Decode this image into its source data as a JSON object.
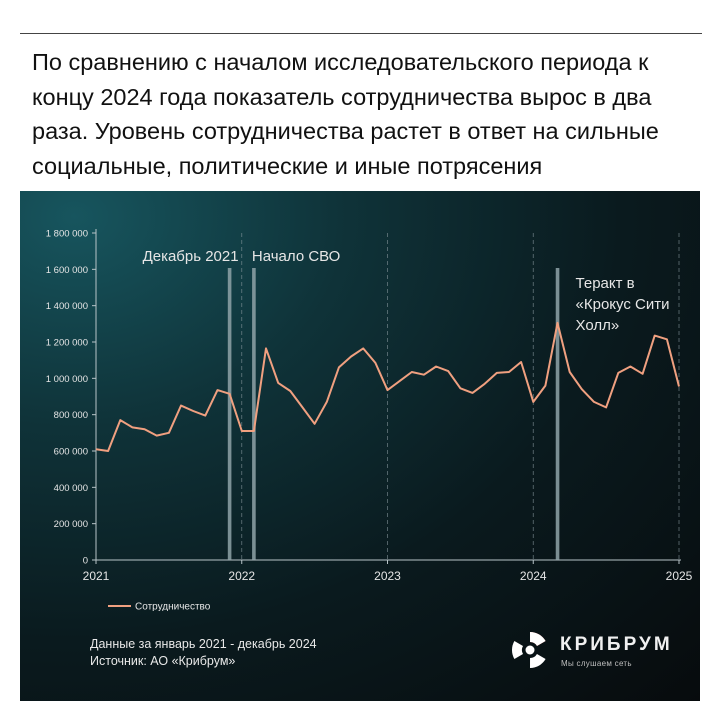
{
  "headline": "По сравнению с началом исследовательского периода к концу 2024 года показатель сотрудничества вырос в два раза. Уровень сотрудничества растет в ответ на сильные социальные, политические и иные потрясения",
  "footer": {
    "line1": "Данные за январь 2021  - декабрь 2024",
    "line2": "Источник: АО «Крибрум»"
  },
  "logo": {
    "name": "КРИБРУМ",
    "tagline": "Мы слушаем сеть"
  },
  "colors": {
    "line": "#f0a080",
    "event_bar": "#8fa3a8",
    "axis_text": "#e6e6e6",
    "panel_bg": "#0a1a1e",
    "logo_red": "#d6332a"
  },
  "chart_data": {
    "type": "line",
    "x_start": "2021-01",
    "x_end": "2025-01",
    "x_ticks": [
      "2021",
      "2022",
      "2023",
      "2024",
      "2025"
    ],
    "ylim": [
      0,
      1800000
    ],
    "y_ticks": [
      "0",
      "200 000",
      "400 000",
      "600 000",
      "800 000",
      "1 000 000",
      "1 200 000",
      "1 400 000",
      "1 600 000",
      "1 800 000"
    ],
    "grid": "vertical dashed at year boundaries",
    "legend_position": "bottom-left",
    "series": [
      {
        "name": "Сотрудничество",
        "x": [
          "2021-01",
          "2021-02",
          "2021-03",
          "2021-04",
          "2021-05",
          "2021-06",
          "2021-07",
          "2021-08",
          "2021-09",
          "2021-10",
          "2021-11",
          "2021-12",
          "2022-01",
          "2022-02",
          "2022-03",
          "2022-04",
          "2022-05",
          "2022-06",
          "2022-07",
          "2022-08",
          "2022-09",
          "2022-10",
          "2022-11",
          "2022-12",
          "2023-01",
          "2023-02",
          "2023-03",
          "2023-04",
          "2023-05",
          "2023-06",
          "2023-07",
          "2023-08",
          "2023-09",
          "2023-10",
          "2023-11",
          "2023-12",
          "2024-01",
          "2024-02",
          "2024-03",
          "2024-04",
          "2024-05",
          "2024-06",
          "2024-07",
          "2024-08",
          "2024-09",
          "2024-10",
          "2024-11",
          "2024-12",
          "2025-01"
        ],
        "values": [
          610000,
          600000,
          770000,
          730000,
          720000,
          685000,
          700000,
          850000,
          820000,
          795000,
          935000,
          915000,
          710000,
          710000,
          1165000,
          975000,
          930000,
          840000,
          750000,
          870000,
          1060000,
          1120000,
          1165000,
          1085000,
          935000,
          985000,
          1035000,
          1020000,
          1065000,
          1040000,
          945000,
          920000,
          970000,
          1030000,
          1035000,
          1090000,
          870000,
          960000,
          1305000,
          1035000,
          940000,
          870000,
          840000,
          1030000,
          1065000,
          1025000,
          1235000,
          1215000,
          955000
        ]
      }
    ],
    "events": [
      {
        "label": "Декабрь 2021",
        "date": "2021-12"
      },
      {
        "label": "Начало СВО",
        "date": "2022-02"
      },
      {
        "label": "Теракт в «Крокус Сити Холл»",
        "label_lines": [
          "Теракт в",
          "«Крокус Сити",
          "Холл»"
        ],
        "date": "2024-03"
      }
    ]
  }
}
